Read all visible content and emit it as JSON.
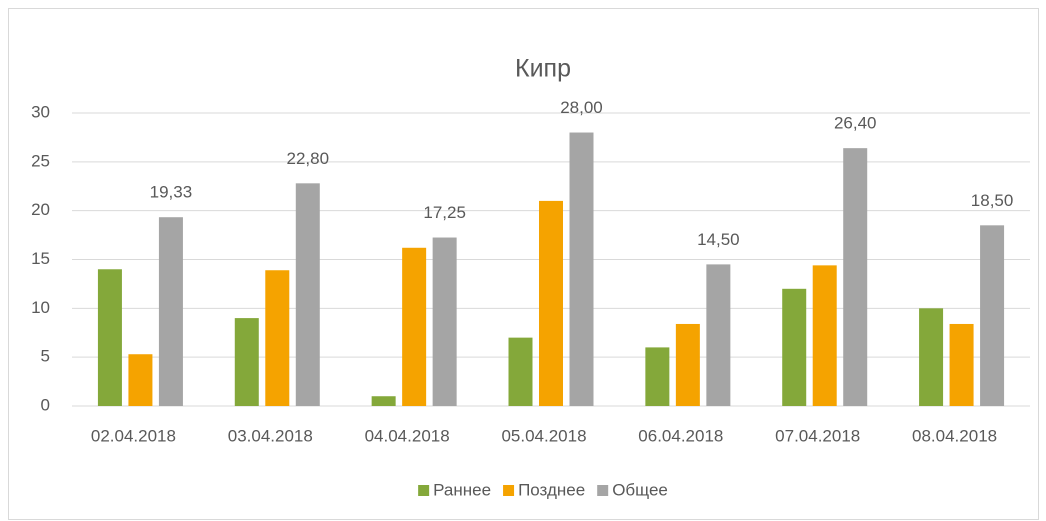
{
  "chart_data": {
    "type": "bar",
    "title": "Кипр",
    "categories": [
      "02.04.2018",
      "03.04.2018",
      "04.04.2018",
      "05.04.2018",
      "06.04.2018",
      "07.04.2018",
      "08.04.2018"
    ],
    "series": [
      {
        "name": "Раннее",
        "color": "#84a83a",
        "values": [
          14,
          9,
          1,
          7,
          6,
          12,
          10
        ]
      },
      {
        "name": "Позднее",
        "color": "#f5a300",
        "values": [
          5.3,
          13.9,
          16.2,
          21,
          8.4,
          14.4,
          8.4
        ]
      },
      {
        "name": "Общее",
        "color": "#a5a5a5",
        "values": [
          19.33,
          22.8,
          17.25,
          28,
          14.5,
          26.4,
          18.5
        ],
        "value_labels": [
          "19,33",
          "22,80",
          "17,25",
          "28,00",
          "14,50",
          "26,40",
          "18,50"
        ]
      }
    ],
    "ylim": [
      0,
      30
    ],
    "yticks": [
      0,
      5,
      10,
      15,
      20,
      25,
      30
    ],
    "grid": true,
    "legend": "bottom"
  }
}
